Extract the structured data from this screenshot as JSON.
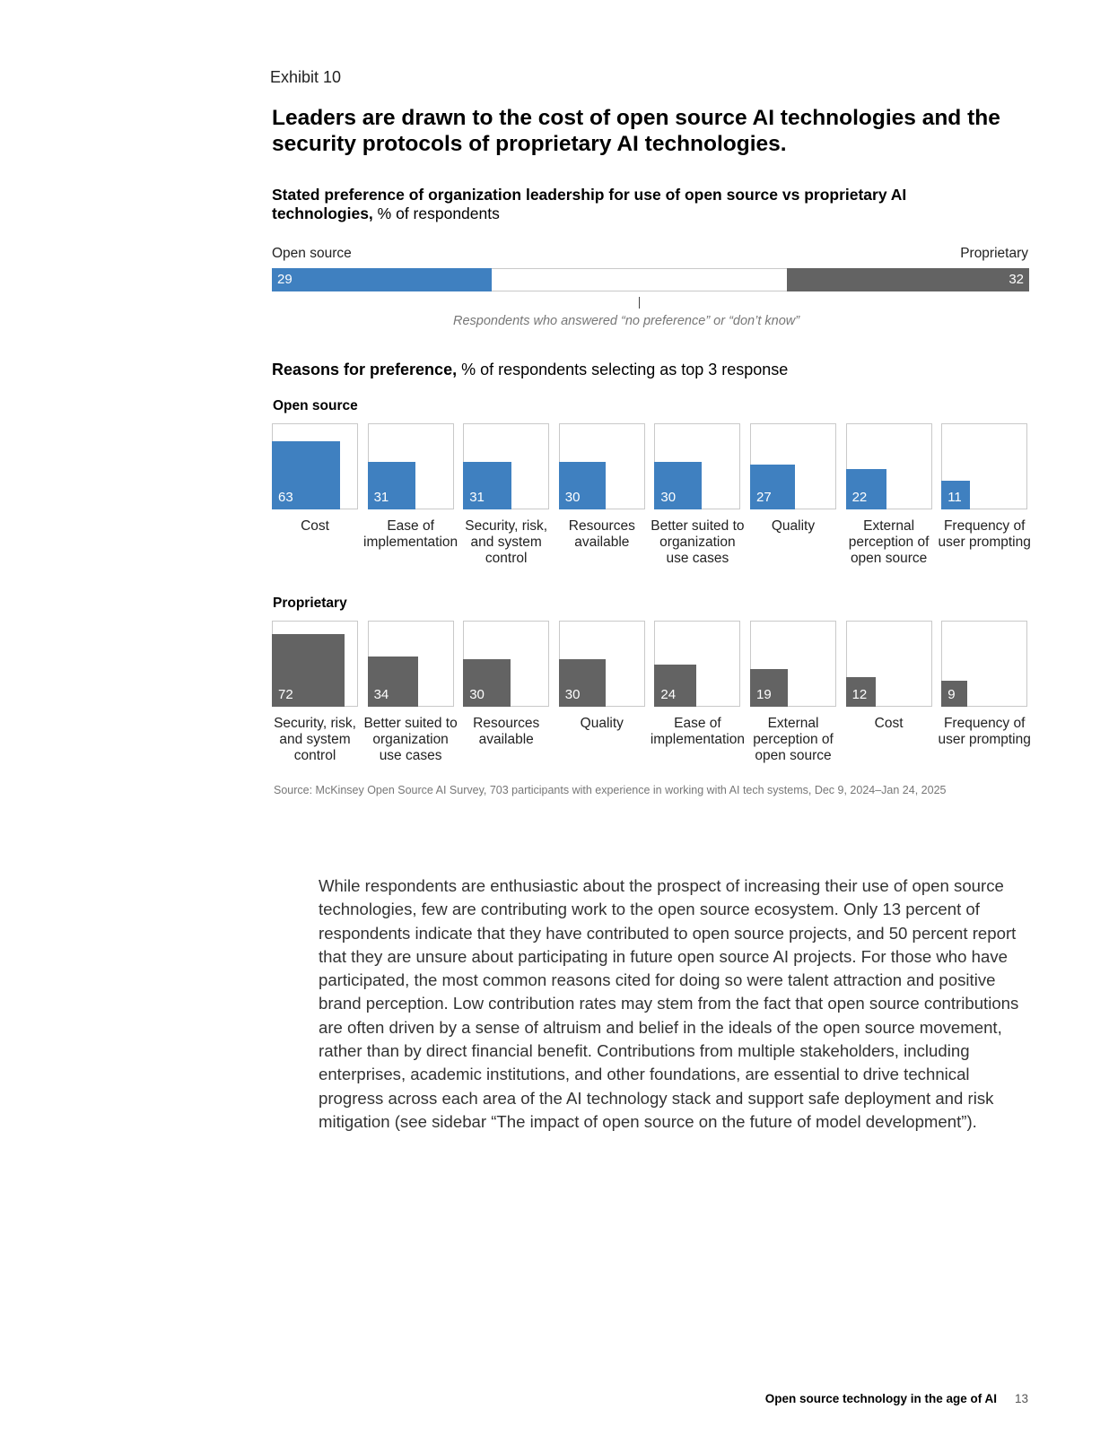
{
  "exhibit_label": "Exhibit 10",
  "headline": "Leaders are drawn to the cost of open source AI technologies and the security protocols of proprietary AI technologies.",
  "subtitle_bold": "Stated preference of organization leadership for use of open source vs proprietary AI technologies,",
  "subtitle_rest": " % of respondents",
  "colors": {
    "open_source": "#3f80c0",
    "proprietary": "#636363"
  },
  "chart_data": [
    {
      "type": "bar",
      "orientation": "horizontal-stacked",
      "left_label": "Open source",
      "right_label": "Proprietary",
      "series": [
        {
          "name": "Open source",
          "values": [
            29
          ]
        },
        {
          "name": "Proprietary",
          "values": [
            32
          ]
        }
      ],
      "annotation": "Respondents who answered “no preference” or “don’t know”",
      "ylim": [
        0,
        100
      ]
    },
    {
      "type": "bar",
      "title_bold": "Reasons for preference,",
      "title_rest": " % of respondents selecting as top 3 response",
      "group_label": "Open source",
      "categories": [
        "Cost",
        "Ease of implementation",
        "Security, risk, and system control",
        "Resources available",
        "Better suited to organization use cases",
        "Quality",
        "External perception of open source",
        "Frequency of user prompting"
      ],
      "values": [
        63,
        31,
        31,
        30,
        30,
        27,
        22,
        11
      ],
      "ylim": [
        0,
        100
      ]
    },
    {
      "type": "bar",
      "group_label": "Proprietary",
      "categories": [
        "Security, risk, and system control",
        "Better suited to organization use cases",
        "Resources available",
        "Quality",
        "Ease of implementation",
        "External perception of open source",
        "Cost",
        "Frequency of user prompting"
      ],
      "values": [
        72,
        34,
        30,
        30,
        24,
        19,
        12,
        9
      ],
      "ylim": [
        0,
        100
      ]
    }
  ],
  "source": "Source: McKinsey Open Source AI Survey, 703 participants with experience in working with AI tech systems, Dec 9, 2024–Jan 24, 2025",
  "body_text": "While respondents are enthusiastic about the prospect of increasing their use of open source technologies, few are contributing work to the open source ecosystem. Only 13 percent of respondents indicate that they have contributed to open source projects, and 50 percent report that they are unsure about participating in future open source AI projects. For those who have participated, the most common reasons cited for doing so were talent attraction and positive brand perception. Low contribution rates may stem from the fact that open source contributions are often driven by a sense of altruism and belief in the ideals of the open source movement, rather than by direct financial benefit. Contributions from multiple stakeholders, including enterprises, academic institutions, and other foundations, are essential to drive technical progress across each area of the AI technology stack and support safe deployment and risk mitigation (see sidebar “The impact of open source on the future of model development”).",
  "footer": {
    "title": "Open source technology in the age of AI",
    "page": "13"
  }
}
